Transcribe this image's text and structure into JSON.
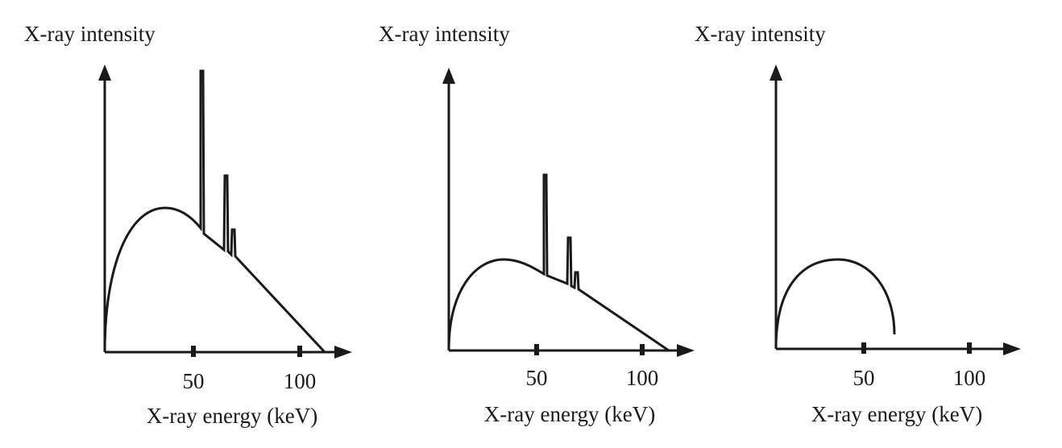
{
  "panels": [
    {
      "y_label": "X-ray intensity",
      "x_label": "X-ray energy (keV)",
      "ticks": [
        "50",
        "100"
      ]
    },
    {
      "y_label": "X-ray intensity",
      "x_label": "X-ray energy (keV)",
      "ticks": [
        "50",
        "100"
      ]
    },
    {
      "y_label": "X-ray intensity",
      "x_label": "X-ray energy (keV)",
      "ticks": [
        "50",
        "100"
      ]
    }
  ]
}
